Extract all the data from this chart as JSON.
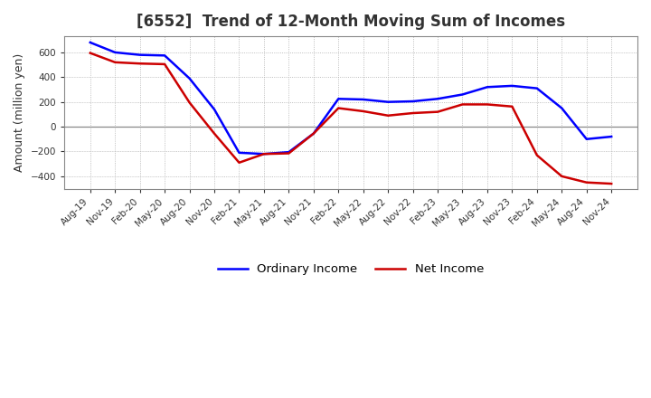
{
  "title": "[6552]  Trend of 12-Month Moving Sum of Incomes",
  "ylabel": "Amount (million yen)",
  "background_color": "#ffffff",
  "plot_bg_color": "#ffffff",
  "grid_color": "#aaaaaa",
  "title_fontsize": 12,
  "title_color": "#333333",
  "tick_labels": [
    "Aug-19",
    "Nov-19",
    "Feb-20",
    "May-20",
    "Aug-20",
    "Nov-20",
    "Feb-21",
    "May-21",
    "Aug-21",
    "Nov-21",
    "Feb-22",
    "May-22",
    "Aug-22",
    "Nov-22",
    "Feb-23",
    "May-23",
    "Aug-23",
    "Nov-23",
    "Feb-24",
    "May-24",
    "Aug-24",
    "Nov-24"
  ],
  "ordinary_income": [
    680,
    600,
    580,
    575,
    390,
    140,
    -210,
    -220,
    -205,
    -55,
    225,
    220,
    200,
    205,
    225,
    260,
    320,
    330,
    310,
    150,
    -100,
    -80
  ],
  "net_income": [
    595,
    520,
    510,
    505,
    195,
    -55,
    -290,
    -220,
    -215,
    -55,
    150,
    125,
    90,
    110,
    120,
    180,
    180,
    163,
    -230,
    -400,
    -450,
    -460
  ],
  "ordinary_color": "#0000ff",
  "net_color": "#cc0000",
  "ylim": [
    -500,
    730
  ],
  "yticks": [
    -400,
    -200,
    0,
    200,
    400,
    600
  ],
  "legend_ordinary": "Ordinary Income",
  "legend_net": "Net Income"
}
